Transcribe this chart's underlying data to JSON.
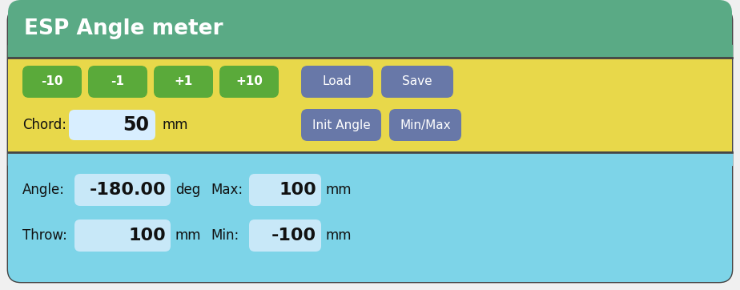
{
  "title": "ESP Angle meter",
  "title_bg": "#5aaa85",
  "title_color": "#ffffff",
  "title_fontsize": 19,
  "middle_bg": "#e8d84a",
  "bottom_bg": "#7dd4e8",
  "outer_bg": "#f0f0f0",
  "border_color": "#444444",
  "green_buttons": [
    "-10",
    "-1",
    "+1",
    "+10"
  ],
  "green_btn_color": "#5aaa3a",
  "green_btn_text_color": "#ffffff",
  "blue_buttons_row1": [
    "Load",
    "Save"
  ],
  "blue_buttons_row2": [
    "Init Angle",
    "Min/Max"
  ],
  "blue_btn_color": "#6878a8",
  "blue_btn_text_color": "#ffffff",
  "chord_label": "Chord:",
  "chord_value": "50",
  "chord_unit": "mm",
  "input_bg_yellow": "#d8eeff",
  "input_bg_blue": "#c8e8f8",
  "angle_label": "Angle:",
  "angle_value": "-180.00",
  "angle_unit": "deg",
  "max_label": "Max:",
  "max_value": "100",
  "max_unit": "mm",
  "throw_label": "Throw:",
  "throw_value": "100",
  "throw_unit": "mm",
  "min_label": "Min:",
  "min_value": "-100",
  "min_unit": "mm",
  "btn_fontsize": 11,
  "label_fontsize": 12,
  "value_fontsize": 15
}
